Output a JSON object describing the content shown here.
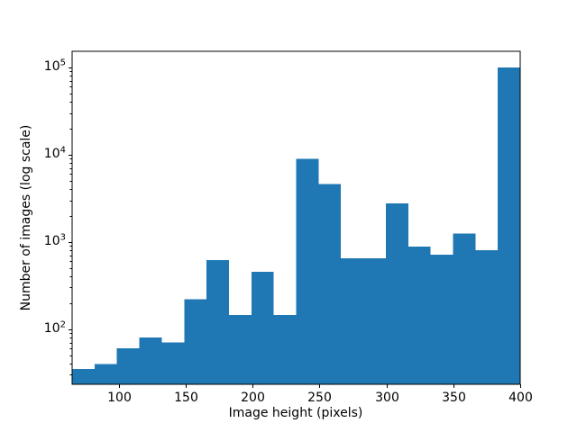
{
  "chart_data": {
    "type": "bar",
    "subtype": "histogram",
    "title": "",
    "xlabel": "Image height (pixels)",
    "ylabel": "Number of images (log scale)",
    "x_scale": "linear",
    "y_scale": "log",
    "xlim": [
      65,
      400
    ],
    "ylim": [
      23.3,
      153000
    ],
    "x_ticks": [
      100,
      150,
      200,
      250,
      300,
      350,
      400
    ],
    "y_ticks": [
      {
        "value": 100,
        "base": "10",
        "exponent": "2"
      },
      {
        "value": 1000,
        "base": "10",
        "exponent": "3"
      },
      {
        "value": 10000,
        "base": "10",
        "exponent": "4"
      },
      {
        "value": 100000,
        "base": "10",
        "exponent": "5"
      }
    ],
    "y_minor_ticks": true,
    "bin_edges": [
      65,
      81.75,
      98.5,
      115.25,
      132,
      148.75,
      165.5,
      182.25,
      199,
      215.75,
      232.5,
      249.25,
      266,
      282.75,
      299.5,
      316.25,
      333,
      349.75,
      366.5,
      383.25,
      400
    ],
    "counts": [
      35,
      40,
      60,
      80,
      70,
      220,
      620,
      145,
      455,
      145,
      8900,
      4600,
      650,
      650,
      2750,
      880,
      710,
      1250,
      800,
      100000
    ],
    "grid": false,
    "legend": null,
    "bar_color": "#1f77b4",
    "axis_color": "#000000",
    "text_color": "#000000",
    "background": "#ffffff"
  }
}
